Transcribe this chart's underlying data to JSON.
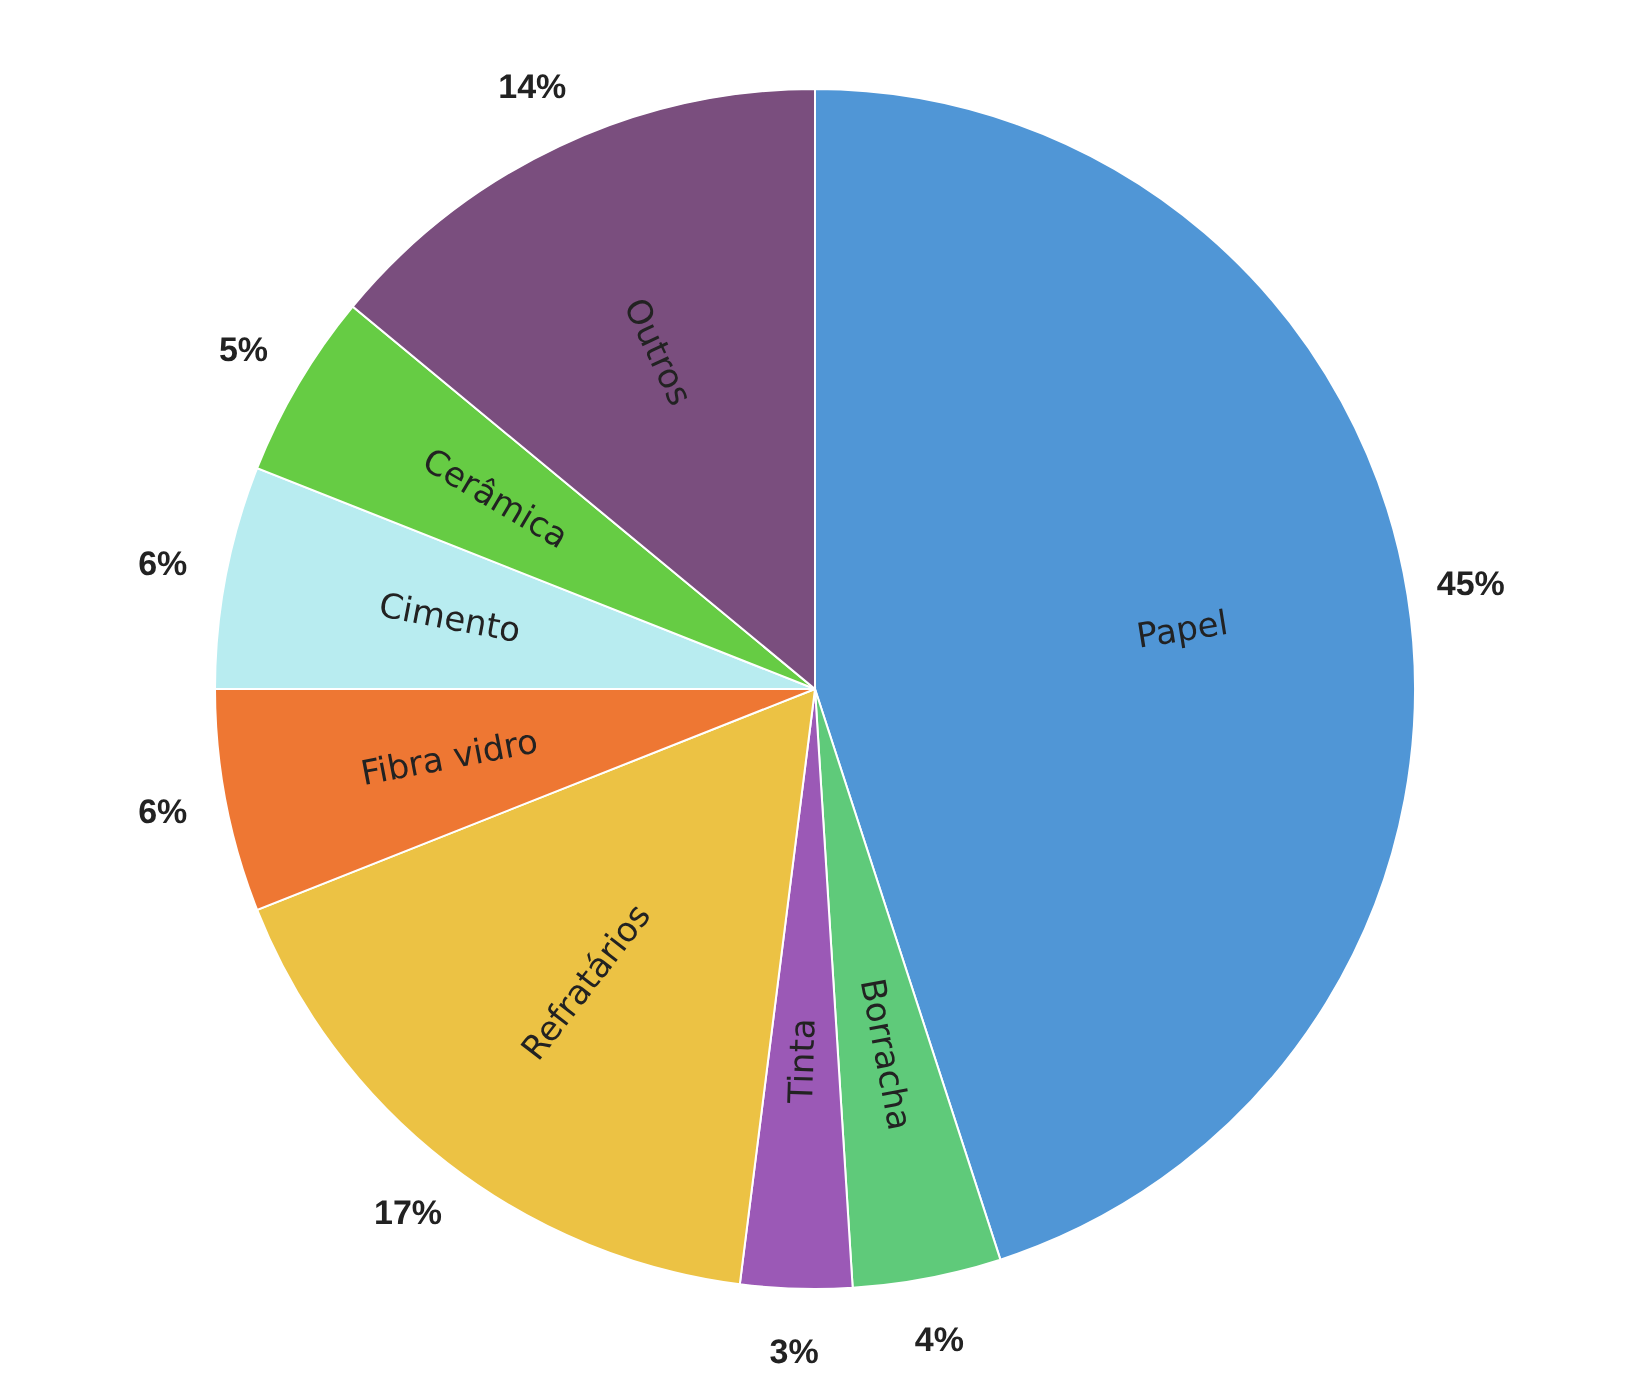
{
  "chart_data": {
    "type": "pie",
    "categories": [
      "Papel",
      "Borracha",
      "Tinta",
      "Refratários",
      "Fibra vidro",
      "Cimento",
      "Cerâmica",
      "Outros"
    ],
    "values": [
      45,
      4,
      3,
      17,
      6,
      6,
      5,
      14
    ],
    "colors": [
      "#5096d6",
      "#5fca7a",
      "#9b59b6",
      "#ecc244",
      "#ee7733",
      "#b8ecf0",
      "#66cc44",
      "#7a4e7e"
    ],
    "value_labels": [
      "45%",
      "4%",
      "3%",
      "17%",
      "6%",
      "6%",
      "5%",
      "14%"
    ],
    "legend": false
  }
}
